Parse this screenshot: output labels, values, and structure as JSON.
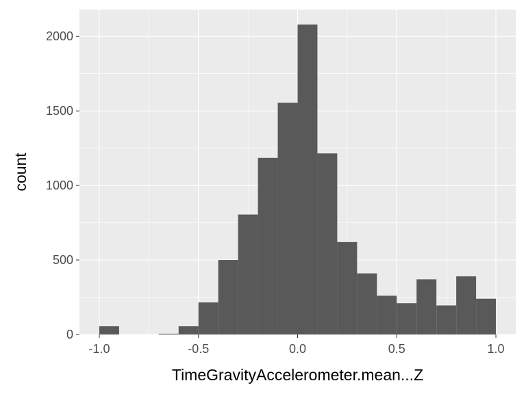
{
  "chart_data": {
    "type": "bar",
    "subtype": "histogram",
    "xlabel": "TimeGravityAccelerometer.mean...Z",
    "ylabel": "count",
    "xlim": [
      -1.1,
      1.1
    ],
    "ylim": [
      0,
      2180
    ],
    "x_ticks": [
      -1.0,
      -0.5,
      0.0,
      0.5,
      1.0
    ],
    "x_tick_labels": [
      "-1.0",
      "-0.5",
      "0.0",
      "0.5",
      "1.0"
    ],
    "y_ticks": [
      0,
      500,
      1000,
      1500,
      2000
    ],
    "y_tick_labels": [
      "0",
      "500",
      "1000",
      "1500",
      "2000"
    ],
    "bin_width": 0.1,
    "bins": [
      {
        "x0": -1.0,
        "x1": -0.9,
        "count": 55
      },
      {
        "x0": -0.9,
        "x1": -0.8,
        "count": 0
      },
      {
        "x0": -0.8,
        "x1": -0.7,
        "count": 0
      },
      {
        "x0": -0.7,
        "x1": -0.6,
        "count": 5
      },
      {
        "x0": -0.6,
        "x1": -0.5,
        "count": 55
      },
      {
        "x0": -0.5,
        "x1": -0.4,
        "count": 215
      },
      {
        "x0": -0.4,
        "x1": -0.3,
        "count": 500
      },
      {
        "x0": -0.3,
        "x1": -0.2,
        "count": 805
      },
      {
        "x0": -0.2,
        "x1": -0.1,
        "count": 1185
      },
      {
        "x0": -0.1,
        "x1": 0.0,
        "count": 1555
      },
      {
        "x0": 0.0,
        "x1": 0.1,
        "count": 2080
      },
      {
        "x0": 0.1,
        "x1": 0.2,
        "count": 1215
      },
      {
        "x0": 0.2,
        "x1": 0.3,
        "count": 620
      },
      {
        "x0": 0.3,
        "x1": 0.4,
        "count": 410
      },
      {
        "x0": 0.4,
        "x1": 0.5,
        "count": 260
      },
      {
        "x0": 0.5,
        "x1": 0.6,
        "count": 210
      },
      {
        "x0": 0.6,
        "x1": 0.7,
        "count": 370
      },
      {
        "x0": 0.7,
        "x1": 0.8,
        "count": 195
      },
      {
        "x0": 0.8,
        "x1": 0.9,
        "count": 390
      },
      {
        "x0": 0.9,
        "x1": 1.0,
        "count": 240
      }
    ],
    "colors": {
      "panel_background": "#ebebeb",
      "grid_major": "#ffffff",
      "bar_fill": "#595959",
      "tick_color": "#333333",
      "tick_label_color": "#4d4d4d"
    },
    "grid": true,
    "legend": "none"
  }
}
